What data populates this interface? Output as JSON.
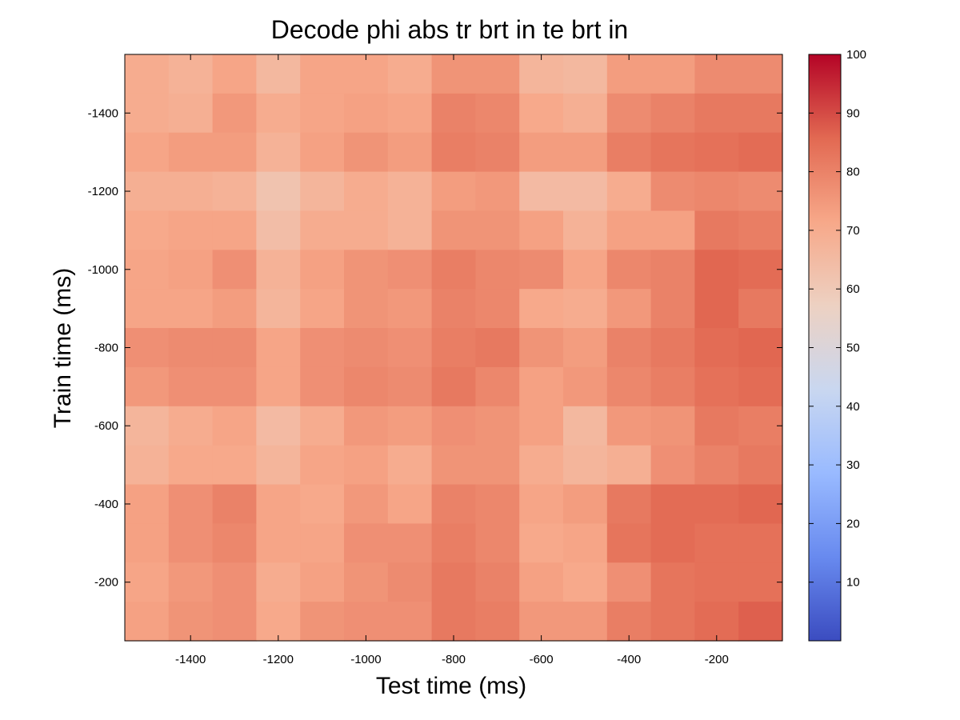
{
  "chart_data": {
    "type": "heatmap",
    "title": "Decode phi abs tr brt in te brt in",
    "xlabel": "Test time (ms)",
    "ylabel": "Train time (ms)",
    "x_centers": [
      -1500,
      -1400,
      -1300,
      -1200,
      -1100,
      -1000,
      -900,
      -800,
      -700,
      -600,
      -500,
      -400,
      -300,
      -200,
      -100
    ],
    "y_centers": [
      -1500,
      -1400,
      -1300,
      -1200,
      -1100,
      -1000,
      -900,
      -800,
      -700,
      -600,
      -500,
      -400,
      -300,
      -200,
      -100
    ],
    "xlim": [
      -1550,
      -50
    ],
    "ylim": [
      -1550,
      -50
    ],
    "y_direction": "reversed",
    "x_ticks": [
      -1400,
      -1200,
      -1000,
      -800,
      -600,
      -400,
      -200
    ],
    "y_ticks": [
      -1400,
      -1200,
      -1000,
      -800,
      -600,
      -400,
      -200
    ],
    "x_tick_labels": [
      "-1400",
      "-1200",
      "-1000",
      "-800",
      "-600",
      "-400",
      "-200"
    ],
    "y_tick_labels": [
      "-1400",
      "-1200",
      "-1000",
      "-800",
      "-600",
      "-400",
      "-200"
    ],
    "colorbar": {
      "min": 0,
      "max": 100,
      "ticks": [
        10,
        20,
        30,
        40,
        50,
        60,
        70,
        80,
        90,
        100
      ],
      "tick_labels": [
        "10",
        "20",
        "30",
        "40",
        "50",
        "60",
        "70",
        "80",
        "90",
        "100"
      ],
      "colormap": "coolwarm",
      "colormap_stops": [
        "#3b4cc0",
        "#688aef",
        "#99baff",
        "#c9d7f0",
        "#edd1c2",
        "#f7a889",
        "#e26952",
        "#b40426"
      ],
      "placement": "right"
    },
    "grid": false,
    "values": [
      [
        70,
        68,
        72,
        66,
        72,
        72,
        70,
        76,
        76,
        67,
        66,
        74,
        74,
        78,
        78
      ],
      [
        70,
        69,
        75,
        70,
        72,
        73,
        72,
        80,
        79,
        71,
        69,
        78,
        80,
        82,
        82
      ],
      [
        72,
        74,
        74,
        68,
        73,
        76,
        74,
        81,
        80,
        74,
        74,
        81,
        83,
        84,
        85
      ],
      [
        69,
        69,
        68,
        62,
        67,
        70,
        68,
        74,
        75,
        65,
        65,
        70,
        78,
        79,
        78
      ],
      [
        71,
        72,
        72,
        64,
        70,
        70,
        68,
        76,
        76,
        73,
        68,
        73,
        73,
        82,
        81
      ],
      [
        72,
        73,
        77,
        68,
        73,
        76,
        77,
        81,
        79,
        78,
        72,
        79,
        80,
        86,
        85
      ],
      [
        72,
        72,
        74,
        67,
        72,
        76,
        75,
        80,
        79,
        71,
        70,
        75,
        80,
        86,
        82
      ],
      [
        77,
        78,
        78,
        72,
        77,
        78,
        77,
        81,
        82,
        76,
        74,
        80,
        82,
        85,
        86
      ],
      [
        75,
        77,
        77,
        72,
        77,
        79,
        78,
        82,
        79,
        73,
        75,
        79,
        81,
        84,
        85
      ],
      [
        67,
        70,
        72,
        65,
        70,
        75,
        74,
        77,
        76,
        73,
        66,
        75,
        76,
        82,
        81
      ],
      [
        68,
        71,
        71,
        67,
        72,
        73,
        70,
        76,
        76,
        70,
        67,
        69,
        77,
        80,
        82
      ],
      [
        73,
        77,
        80,
        72,
        71,
        75,
        72,
        80,
        79,
        72,
        74,
        82,
        85,
        85,
        86
      ],
      [
        73,
        77,
        79,
        72,
        72,
        77,
        77,
        81,
        79,
        71,
        72,
        83,
        85,
        84,
        84
      ],
      [
        72,
        75,
        77,
        70,
        73,
        76,
        78,
        82,
        80,
        73,
        71,
        77,
        83,
        84,
        84
      ],
      [
        73,
        76,
        77,
        71,
        76,
        77,
        77,
        82,
        81,
        75,
        75,
        81,
        83,
        85,
        87
      ]
    ]
  }
}
